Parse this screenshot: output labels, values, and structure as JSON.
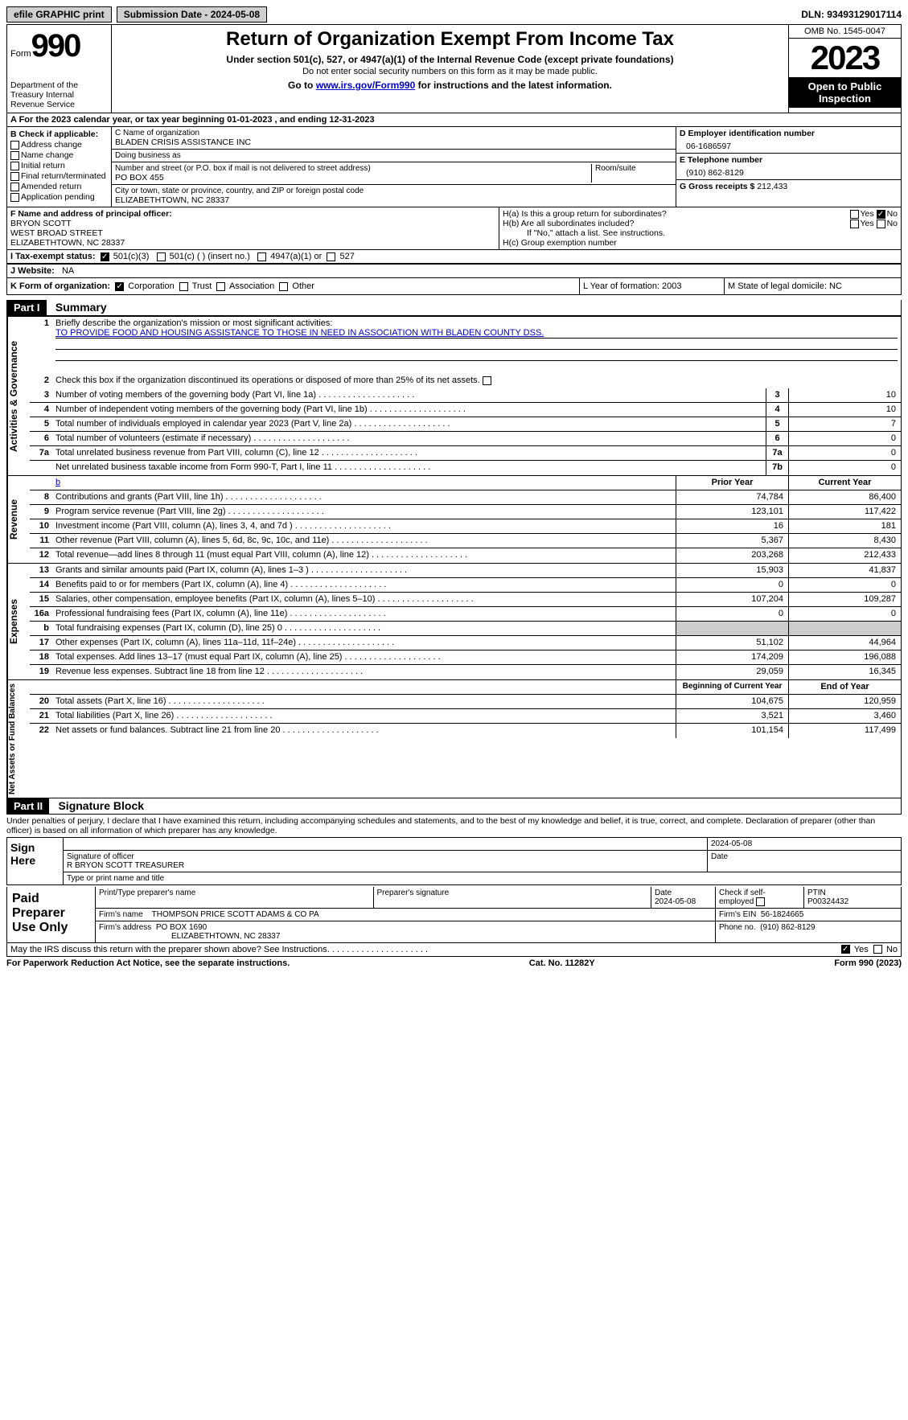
{
  "topbar": {
    "efile_label": "efile GRAPHIC print",
    "submission_label": "Submission Date - 2024-05-08",
    "dln": "DLN: 93493129017114"
  },
  "header": {
    "form_word": "Form",
    "form_num": "990",
    "dept": "Department of the Treasury Internal Revenue Service",
    "title": "Return of Organization Exempt From Income Tax",
    "subtitle": "Under section 501(c), 527, or 4947(a)(1) of the Internal Revenue Code (except private foundations)",
    "sub2": "Do not enter social security numbers on this form as it may be made public.",
    "link_pre": "Go to ",
    "link_url": "www.irs.gov/Form990",
    "link_post": " for instructions and the latest information.",
    "omb": "OMB No. 1545-0047",
    "year": "2023",
    "open_pub": "Open to Public Inspection"
  },
  "row_a": "A For the 2023 calendar year, or tax year beginning 01-01-2023   , and ending 12-31-2023",
  "box_b": {
    "label": "B Check if applicable:",
    "opts": [
      "Address change",
      "Name change",
      "Initial return",
      "Final return/terminated",
      "Amended return",
      "Application pending"
    ]
  },
  "box_c": {
    "name_label": "C Name of organization",
    "name": "BLADEN CRISIS ASSISTANCE INC",
    "dba_label": "Doing business as",
    "dba": "",
    "addr_label": "Number and street (or P.O. box if mail is not delivered to street address)",
    "addr": "PO BOX 455",
    "room_label": "Room/suite",
    "city_label": "City or town, state or province, country, and ZIP or foreign postal code",
    "city": "ELIZABETHTOWN, NC  28337"
  },
  "box_d": {
    "label": "D Employer identification number",
    "val": "06-1686597"
  },
  "box_e": {
    "label": "E Telephone number",
    "val": "(910) 862-8129"
  },
  "box_g": {
    "label": "G Gross receipts $ ",
    "val": "212,433"
  },
  "box_f": {
    "label": "F  Name and address of principal officer:",
    "name": "BRYON SCOTT",
    "street": "WEST BROAD STREET",
    "city": "ELIZABETHTOWN, NC  28337"
  },
  "box_h": {
    "a": "H(a)  Is this a group return for subordinates?",
    "b": "H(b)  Are all subordinates included?",
    "b_note": "If \"No,\" attach a list. See instructions.",
    "c": "H(c)  Group exemption number",
    "yes": "Yes",
    "no": "No"
  },
  "row_i": {
    "label": "I  Tax-exempt status:",
    "opt1": "501(c)(3)",
    "opt2": "501(c) (  ) (insert no.)",
    "opt3": "4947(a)(1) or",
    "opt4": "527"
  },
  "row_j": {
    "label": "J  Website:",
    "val": "NA"
  },
  "row_k": {
    "label": "K Form of organization:",
    "opts": [
      "Corporation",
      "Trust",
      "Association",
      "Other"
    ],
    "l": "L Year of formation: 2003",
    "m": "M State of legal domicile: NC"
  },
  "part1": {
    "hdr": "Part I",
    "title": "Summary"
  },
  "summary": {
    "q1_label": "Briefly describe the organization's mission or most significant activities:",
    "q1_val": "TO PROVIDE FOOD AND HOUSING ASSISTANCE TO THOSE IN NEED IN ASSOCIATION WITH BLADEN COUNTY DSS.",
    "q2": "Check this box      if the organization discontinued its operations or disposed of more than 25% of its net assets.",
    "lines": [
      {
        "n": "3",
        "d": "Number of voting members of the governing body (Part VI, line 1a)",
        "c": "3",
        "v": "10"
      },
      {
        "n": "4",
        "d": "Number of independent voting members of the governing body (Part VI, line 1b)",
        "c": "4",
        "v": "10"
      },
      {
        "n": "5",
        "d": "Total number of individuals employed in calendar year 2023 (Part V, line 2a)",
        "c": "5",
        "v": "7"
      },
      {
        "n": "6",
        "d": "Total number of volunteers (estimate if necessary)",
        "c": "6",
        "v": "0"
      },
      {
        "n": "7a",
        "d": "Total unrelated business revenue from Part VIII, column (C), line 12",
        "c": "7a",
        "v": "0"
      },
      {
        "n": "",
        "d": "Net unrelated business taxable income from Form 990-T, Part I, line 11",
        "c": "7b",
        "v": "0"
      }
    ],
    "hdr_prior": "Prior Year",
    "hdr_curr": "Current Year",
    "revenue": [
      {
        "n": "8",
        "d": "Contributions and grants (Part VIII, line 1h)",
        "p": "74,784",
        "c": "86,400"
      },
      {
        "n": "9",
        "d": "Program service revenue (Part VIII, line 2g)",
        "p": "123,101",
        "c": "117,422"
      },
      {
        "n": "10",
        "d": "Investment income (Part VIII, column (A), lines 3, 4, and 7d )",
        "p": "16",
        "c": "181"
      },
      {
        "n": "11",
        "d": "Other revenue (Part VIII, column (A), lines 5, 6d, 8c, 9c, 10c, and 11e)",
        "p": "5,367",
        "c": "8,430"
      },
      {
        "n": "12",
        "d": "Total revenue—add lines 8 through 11 (must equal Part VIII, column (A), line 12)",
        "p": "203,268",
        "c": "212,433"
      }
    ],
    "expenses": [
      {
        "n": "13",
        "d": "Grants and similar amounts paid (Part IX, column (A), lines 1–3 )",
        "p": "15,903",
        "c": "41,837"
      },
      {
        "n": "14",
        "d": "Benefits paid to or for members (Part IX, column (A), line 4)",
        "p": "0",
        "c": "0"
      },
      {
        "n": "15",
        "d": "Salaries, other compensation, employee benefits (Part IX, column (A), lines 5–10)",
        "p": "107,204",
        "c": "109,287"
      },
      {
        "n": "16a",
        "d": "Professional fundraising fees (Part IX, column (A), line 11e)",
        "p": "0",
        "c": "0"
      },
      {
        "n": "b",
        "d": "Total fundraising expenses (Part IX, column (D), line 25) 0",
        "p": "",
        "c": "",
        "gray": true
      },
      {
        "n": "17",
        "d": "Other expenses (Part IX, column (A), lines 11a–11d, 11f–24e)",
        "p": "51,102",
        "c": "44,964"
      },
      {
        "n": "18",
        "d": "Total expenses. Add lines 13–17 (must equal Part IX, column (A), line 25)",
        "p": "174,209",
        "c": "196,088"
      },
      {
        "n": "19",
        "d": "Revenue less expenses. Subtract line 18 from line 12",
        "p": "29,059",
        "c": "16,345"
      }
    ],
    "hdr_begin": "Beginning of Current Year",
    "hdr_end": "End of Year",
    "netassets": [
      {
        "n": "20",
        "d": "Total assets (Part X, line 16)",
        "p": "104,675",
        "c": "120,959"
      },
      {
        "n": "21",
        "d": "Total liabilities (Part X, line 26)",
        "p": "3,521",
        "c": "3,460"
      },
      {
        "n": "22",
        "d": "Net assets or fund balances. Subtract line 21 from line 20",
        "p": "101,154",
        "c": "117,499"
      }
    ],
    "side1": "Activities & Governance",
    "side2": "Revenue",
    "side3": "Expenses",
    "side4": "Net Assets or Fund Balances"
  },
  "part2": {
    "hdr": "Part II",
    "title": "Signature Block"
  },
  "sig": {
    "decl": "Under penalties of perjury, I declare that I have examined this return, including accompanying schedules and statements, and to the best of my knowledge and belief, it is true, correct, and complete. Declaration of preparer (other than officer) is based on all information of which preparer has any knowledge.",
    "sign_here": "Sign Here",
    "sig_officer_label": "Signature of officer",
    "date_label": "Date",
    "date_val": "2024-05-08",
    "name_title": "R BRYON SCOTT TREASURER",
    "name_title_label": "Type or print name and title",
    "prep": "Paid Preparer Use Only",
    "prep_name_label": "Print/Type preparer's name",
    "prep_sig_label": "Preparer's signature",
    "prep_date_label": "Date",
    "prep_date": "2024-05-08",
    "check_self": "Check       if self-employed",
    "ptin_label": "PTIN",
    "ptin": "P00324432",
    "firm_name_label": "Firm's name",
    "firm_name": "THOMPSON PRICE SCOTT ADAMS & CO PA",
    "firm_ein_label": "Firm's EIN",
    "firm_ein": "56-1824665",
    "firm_addr_label": "Firm's address",
    "firm_addr1": "PO BOX 1690",
    "firm_addr2": "ELIZABETHTOWN, NC  28337",
    "phone_label": "Phone no.",
    "phone": "(910) 862-8129",
    "discuss": "May the IRS discuss this return with the preparer shown above? See Instructions.",
    "yes": "Yes",
    "no": "No"
  },
  "footer": {
    "left": "For Paperwork Reduction Act Notice, see the separate instructions.",
    "mid": "Cat. No. 11282Y",
    "right": "Form 990 (2023)"
  }
}
